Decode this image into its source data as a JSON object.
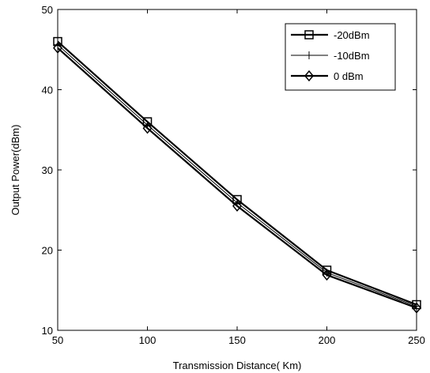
{
  "chart_data": {
    "type": "line",
    "title": "",
    "xlabel": "Transmission Distance( Km)",
    "ylabel": "Output Power(dBm)",
    "xlim": [
      50,
      250
    ],
    "ylim": [
      10,
      50
    ],
    "xticks": [
      50,
      100,
      150,
      200,
      250
    ],
    "yticks": [
      10,
      20,
      30,
      40,
      50
    ],
    "grid": false,
    "legend_position": "top-right",
    "x": [
      50,
      100,
      150,
      200,
      250
    ],
    "series": [
      {
        "name": "-20dBm",
        "marker": "square",
        "color": "#000000",
        "values": [
          46.0,
          36.0,
          26.3,
          17.5,
          13.2
        ]
      },
      {
        "name": "-10dBm",
        "marker": "plus",
        "color": "#000000",
        "values": [
          45.6,
          35.6,
          25.9,
          17.2,
          13.0
        ]
      },
      {
        "name": "0 dBm",
        "marker": "diamond",
        "color": "#000000",
        "values": [
          45.2,
          35.2,
          25.5,
          16.9,
          12.8
        ]
      }
    ]
  }
}
